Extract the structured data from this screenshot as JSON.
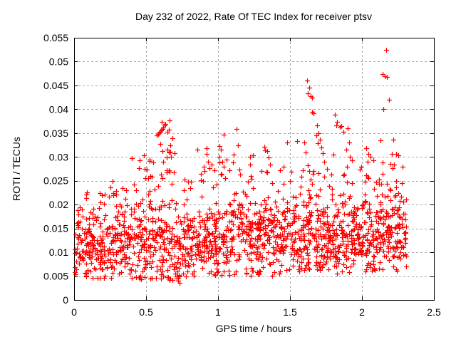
{
  "chart_data": {
    "type": "scatter",
    "title": "Day 232 of 2022, Rate Of TEC Index for receiver ptsv",
    "xlabel": "GPS time / hours",
    "ylabel": "ROTI / TECUs",
    "xlim": [
      0,
      2.5
    ],
    "ylim": [
      0,
      0.055
    ],
    "xticks": {
      "values": [
        0,
        0.5,
        1,
        1.5,
        2,
        2.5
      ],
      "labels": [
        "0",
        "0.5",
        "1",
        "1.5",
        "2",
        "2.5"
      ]
    },
    "yticks": {
      "values": [
        0,
        0.005,
        0.01,
        0.015,
        0.02,
        0.025,
        0.03,
        0.035,
        0.04,
        0.045,
        0.05,
        0.055
      ],
      "labels": [
        "0",
        "0.005",
        "0.01",
        "0.015",
        "0.02",
        "0.025",
        "0.03",
        "0.035",
        "0.04",
        "0.045",
        "0.05",
        "0.055"
      ]
    },
    "grid": true,
    "legend": "none",
    "marker": "plus",
    "marker_size": 7,
    "colors": {
      "marker": "#ff0000",
      "grid": "#a8a8a8",
      "axis": "#000000",
      "background": "#ffffff"
    },
    "x_data_end": 2.31,
    "points": [
      [
        2.17,
        0.0525
      ],
      [
        2.145,
        0.0474
      ],
      [
        2.16,
        0.047
      ],
      [
        2.175,
        0.0468
      ],
      [
        2.19,
        0.042
      ],
      [
        2.15,
        0.0401
      ],
      [
        2.13,
        0.0335
      ],
      [
        1.62,
        0.0461
      ],
      [
        1.635,
        0.0446
      ],
      [
        1.625,
        0.0433
      ],
      [
        1.645,
        0.0427
      ],
      [
        1.655,
        0.0424
      ],
      [
        1.655,
        0.0394
      ],
      [
        1.665,
        0.0391
      ],
      [
        1.81,
        0.0388
      ],
      [
        1.825,
        0.0374
      ],
      [
        1.82,
        0.0366
      ],
      [
        1.845,
        0.0363
      ],
      [
        1.855,
        0.0364
      ],
      [
        1.9,
        0.036
      ],
      [
        1.87,
        0.0352
      ],
      [
        1.91,
        0.0331
      ],
      [
        1.48,
        0.033
      ],
      [
        1.55,
        0.0333
      ],
      [
        1.685,
        0.0345
      ],
      [
        1.69,
        0.0366
      ],
      [
        1.7,
        0.035
      ],
      [
        1.71,
        0.0337
      ],
      [
        1.72,
        0.032
      ],
      [
        1.73,
        0.0308
      ],
      [
        0.575,
        0.0345
      ],
      [
        0.583,
        0.0348
      ],
      [
        0.59,
        0.0351
      ],
      [
        0.597,
        0.0353
      ],
      [
        0.604,
        0.0356
      ],
      [
        0.61,
        0.0374
      ],
      [
        0.612,
        0.0359
      ],
      [
        0.62,
        0.0362
      ],
      [
        0.628,
        0.0366
      ],
      [
        0.636,
        0.0369
      ],
      [
        0.648,
        0.0352
      ],
      [
        0.66,
        0.0357
      ],
      [
        0.663,
        0.0377
      ],
      [
        0.6,
        0.0328
      ],
      [
        0.614,
        0.0313
      ],
      [
        0.648,
        0.0315
      ],
      [
        0.682,
        0.034
      ],
      [
        0.673,
        0.03
      ],
      [
        0.66,
        0.031
      ],
      [
        0.4,
        0.0297
      ],
      [
        0.92,
        0.0306
      ],
      [
        0.93,
        0.029
      ],
      [
        0.9,
        0.028
      ],
      [
        0.94,
        0.0277
      ],
      [
        0.88,
        0.0265
      ],
      [
        1.01,
        0.0323
      ],
      [
        1.02,
        0.0316
      ],
      [
        1.012,
        0.03
      ],
      [
        1.03,
        0.029
      ],
      [
        1.042,
        0.0347
      ],
      [
        1.04,
        0.028
      ],
      [
        1.02,
        0.0265
      ],
      [
        1.05,
        0.0255
      ],
      [
        1.13,
        0.0358
      ],
      [
        1.14,
        0.0325
      ],
      [
        1.32,
        0.0321
      ],
      [
        1.34,
        0.0313
      ],
      [
        1.3,
        0.027
      ],
      [
        1.23,
        0.026
      ],
      [
        1.6,
        0.033
      ],
      [
        1.61,
        0.031
      ],
      [
        2.046,
        0.0306
      ],
      [
        2.06,
        0.03
      ],
      [
        2.04,
        0.029
      ],
      [
        2.22,
        0.0336
      ],
      [
        2.24,
        0.0306
      ],
      [
        2.252,
        0.0304
      ],
      [
        2.28,
        0.0279
      ],
      [
        1.74,
        0.029
      ],
      [
        1.755,
        0.0275
      ],
      [
        0.675,
        0.0086
      ],
      [
        0.685,
        0.0075
      ],
      [
        0.695,
        0.0065
      ],
      [
        0.705,
        0.0055
      ],
      [
        0.715,
        0.0047
      ],
      [
        0.725,
        0.004
      ],
      [
        0.735,
        0.0036
      ],
      [
        0.72,
        0.006
      ],
      [
        0.73,
        0.005
      ]
    ],
    "noise_bands": [
      {
        "x0": 0.0,
        "x1": 0.45,
        "n": 290,
        "center": 0.0115,
        "spread": 0.0095,
        "min": 0.0045,
        "max": 0.023
      },
      {
        "x0": 0.45,
        "x1": 0.75,
        "n": 190,
        "center": 0.0125,
        "spread": 0.011,
        "min": 0.004,
        "max": 0.027
      },
      {
        "x0": 0.75,
        "x1": 1.05,
        "n": 195,
        "center": 0.0122,
        "spread": 0.01,
        "min": 0.005,
        "max": 0.0265
      },
      {
        "x0": 1.05,
        "x1": 1.45,
        "n": 265,
        "center": 0.0132,
        "spread": 0.01,
        "min": 0.005,
        "max": 0.027
      },
      {
        "x0": 1.45,
        "x1": 1.8,
        "n": 235,
        "center": 0.0138,
        "spread": 0.0105,
        "min": 0.006,
        "max": 0.028
      },
      {
        "x0": 1.8,
        "x1": 2.1,
        "n": 205,
        "center": 0.0133,
        "spread": 0.0105,
        "min": 0.0055,
        "max": 0.028
      },
      {
        "x0": 2.1,
        "x1": 2.31,
        "n": 150,
        "center": 0.0148,
        "spread": 0.011,
        "min": 0.006,
        "max": 0.029
      },
      {
        "x0": 0.45,
        "x1": 2.31,
        "n": 120,
        "center": 0.0265,
        "spread": 0.007,
        "min": 0.021,
        "max": 0.0335
      },
      {
        "x0": 0.05,
        "x1": 0.45,
        "n": 22,
        "center": 0.022,
        "spread": 0.004,
        "min": 0.019,
        "max": 0.0255
      }
    ],
    "seed": 1234567
  }
}
